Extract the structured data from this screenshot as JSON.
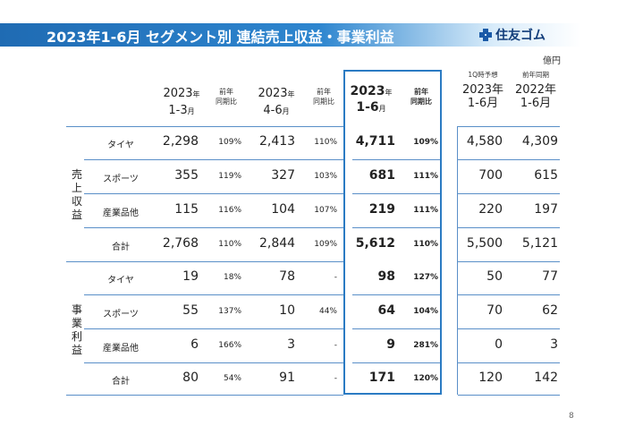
{
  "header": {
    "title": "2023年1-6月 セグメント別 連結売上収益・事業利益"
  },
  "logo": {
    "text": "住友ゴム"
  },
  "unit": "億円",
  "columns": {
    "q1": {
      "year": "2023",
      "year_suffix": "年",
      "period": "1-3",
      "period_suffix": "月"
    },
    "q1_yoy": [
      "前年",
      "同期比"
    ],
    "q2": {
      "year": "2023",
      "year_suffix": "年",
      "period": "4-6",
      "period_suffix": "月"
    },
    "q2_yoy": [
      "前年",
      "同期比"
    ],
    "h1": {
      "year": "2023",
      "year_suffix": "年",
      "period": "1-6",
      "period_suffix": "月"
    },
    "h1_yoy": [
      "前年",
      "同期比"
    ],
    "forecast": {
      "note": "1Q時予想",
      "year": "2023年",
      "period": "1-6月"
    },
    "prev": {
      "note": "前年同期",
      "year": "2022年",
      "period": "1-6月"
    }
  },
  "groups": {
    "sales": "売上収益",
    "profit": "事業利益"
  },
  "rows": [
    {
      "label": "タイヤ",
      "q1": "2,298",
      "q1_yoy": "109%",
      "q2": "2,413",
      "q2_yoy": "110%",
      "h1": "4,711",
      "h1_yoy": "109%",
      "forecast": "4,580",
      "prev": "4,309"
    },
    {
      "label": "スポーツ",
      "q1": "355",
      "q1_yoy": "119%",
      "q2": "327",
      "q2_yoy": "103%",
      "h1": "681",
      "h1_yoy": "111%",
      "forecast": "700",
      "prev": "615"
    },
    {
      "label": "産業品他",
      "q1": "115",
      "q1_yoy": "116%",
      "q2": "104",
      "q2_yoy": "107%",
      "h1": "219",
      "h1_yoy": "111%",
      "forecast": "220",
      "prev": "197"
    },
    {
      "label": "合計",
      "q1": "2,768",
      "q1_yoy": "110%",
      "q2": "2,844",
      "q2_yoy": "109%",
      "h1": "5,612",
      "h1_yoy": "110%",
      "forecast": "5,500",
      "prev": "5,121"
    },
    {
      "label": "タイヤ",
      "q1": "19",
      "q1_yoy": "18%",
      "q2": "78",
      "q2_yoy": "-",
      "h1": "98",
      "h1_yoy": "127%",
      "forecast": "50",
      "prev": "77"
    },
    {
      "label": "スポーツ",
      "q1": "55",
      "q1_yoy": "137%",
      "q2": "10",
      "q2_yoy": "44%",
      "h1": "64",
      "h1_yoy": "104%",
      "forecast": "70",
      "prev": "62"
    },
    {
      "label": "産業品他",
      "q1": "6",
      "q1_yoy": "166%",
      "q2": "3",
      "q2_yoy": "-",
      "h1": "9",
      "h1_yoy": "281%",
      "forecast": "0",
      "prev": "3"
    },
    {
      "label": "合計",
      "q1": "80",
      "q1_yoy": "54%",
      "q2": "91",
      "q2_yoy": "-",
      "h1": "171",
      "h1_yoy": "120%",
      "forecast": "120",
      "prev": "142"
    }
  ],
  "page_number": "8",
  "colors": {
    "accent": "#1f6bb3",
    "highlight_border": "#2b7bc3",
    "rule": "#5a8fc8"
  }
}
